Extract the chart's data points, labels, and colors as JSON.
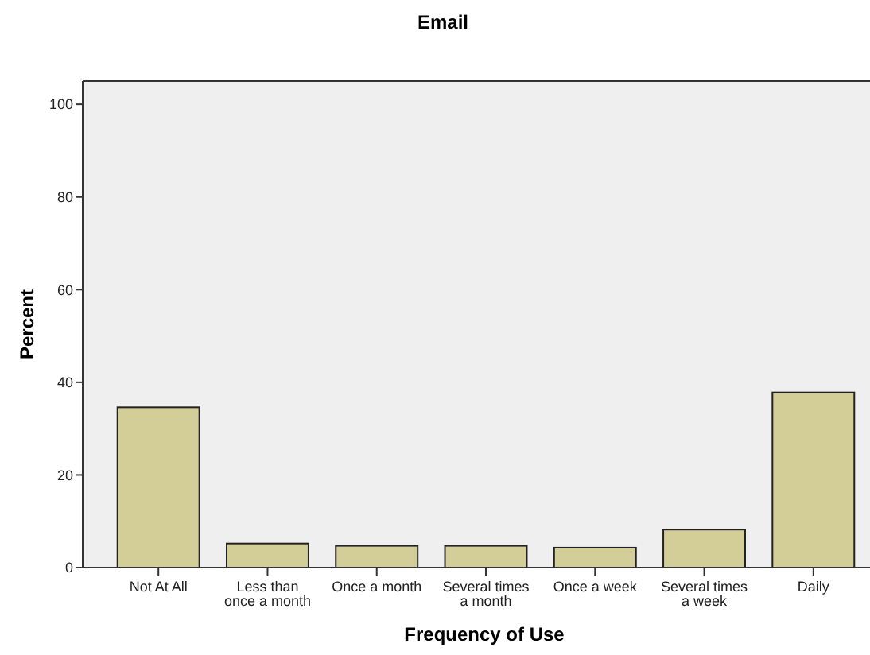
{
  "chart_data": {
    "type": "bar",
    "title": "Email",
    "xlabel": "Frequency of Use",
    "ylabel": "Percent",
    "categories": [
      "Not At All",
      "Less than once a month",
      "Once a month",
      "Several times a month",
      "Once a week",
      "Several times a week",
      "Daily"
    ],
    "values": [
      34.6,
      5.2,
      4.7,
      4.7,
      4.3,
      8.2,
      37.8
    ],
    "color": "#d3ce97",
    "ylim": [
      0,
      105
    ],
    "yticks": [
      0,
      20,
      40,
      60,
      80,
      100
    ],
    "grid": false
  }
}
